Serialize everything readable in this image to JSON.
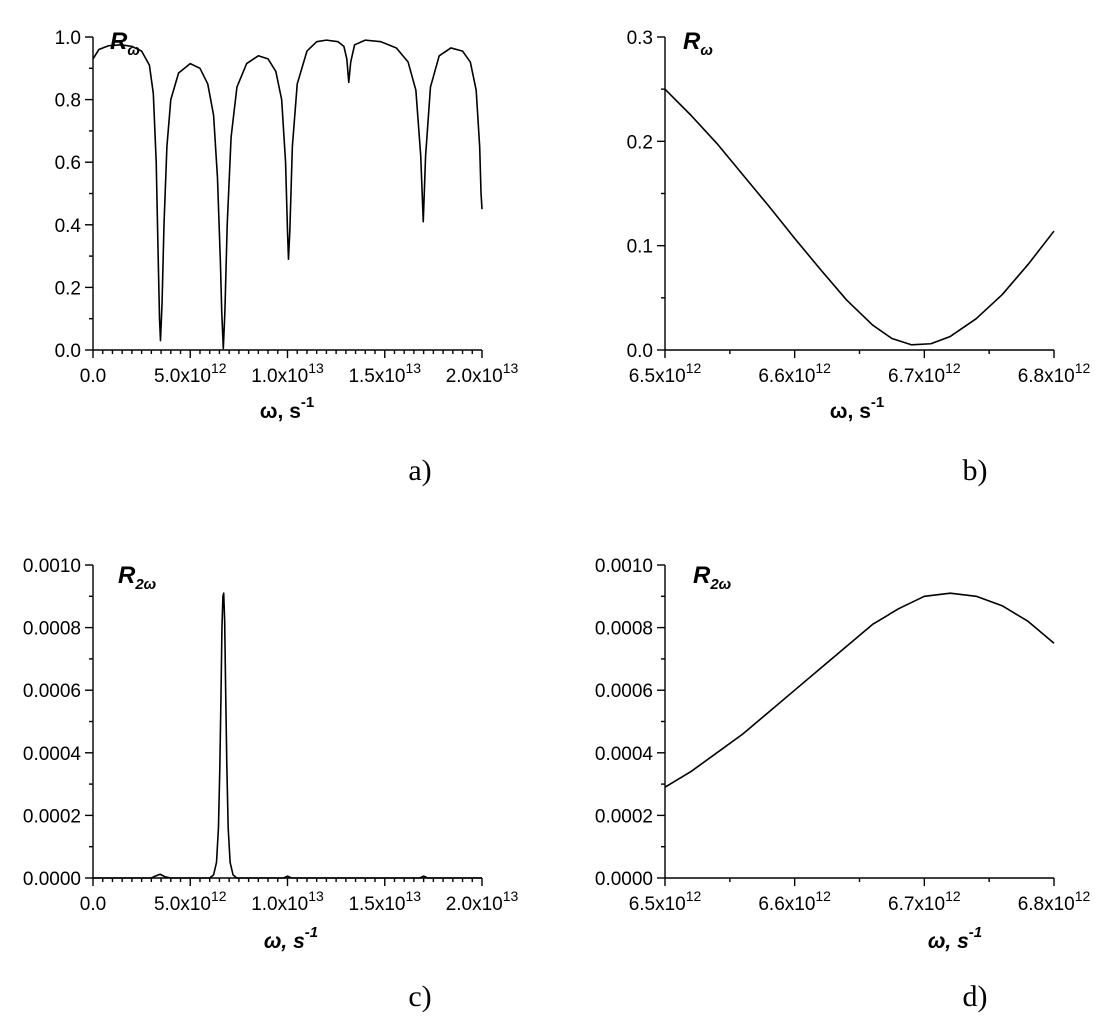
{
  "chart_data": [
    {
      "panel": "a)",
      "type": "line",
      "series_label": "R",
      "series_sub": "ω",
      "xlabel_main": "ω, s",
      "xlabel_sup": "-1",
      "xlim": [
        0,
        20000000000000.0
      ],
      "ylim": [
        0,
        1.0
      ],
      "xticks": [
        {
          "value": 0,
          "mant": "0.0",
          "exp": ""
        },
        {
          "value": 5000000000000.0,
          "mant": "5.0x10",
          "exp": "12"
        },
        {
          "value": 10000000000000.0,
          "mant": "1.0x10",
          "exp": "13"
        },
        {
          "value": 15000000000000.0,
          "mant": "1.5x10",
          "exp": "13"
        },
        {
          "value": 20000000000000.0,
          "mant": "2.0x10",
          "exp": "13"
        }
      ],
      "yticks": [
        {
          "value": 0.0,
          "label": "0.0"
        },
        {
          "value": 0.2,
          "label": "0.2"
        },
        {
          "value": 0.4,
          "label": "0.4"
        },
        {
          "value": 0.6,
          "label": "0.6"
        },
        {
          "value": 0.8,
          "label": "0.8"
        },
        {
          "value": 1.0,
          "label": "1.0"
        }
      ],
      "x_minor": 10,
      "y_minor": 2,
      "points": [
        [
          0,
          0.93
        ],
        [
          300000000000.0,
          0.96
        ],
        [
          800000000000.0,
          0.972
        ],
        [
          1400000000000.0,
          0.975
        ],
        [
          2000000000000.0,
          0.97
        ],
        [
          2500000000000.0,
          0.955
        ],
        [
          2900000000000.0,
          0.91
        ],
        [
          3100000000000.0,
          0.82
        ],
        [
          3250000000000.0,
          0.6
        ],
        [
          3350000000000.0,
          0.3
        ],
        [
          3420000000000.0,
          0.1
        ],
        [
          3470000000000.0,
          0.03
        ],
        [
          3550000000000.0,
          0.15
        ],
        [
          3650000000000.0,
          0.4
        ],
        [
          3800000000000.0,
          0.65
        ],
        [
          4000000000000.0,
          0.8
        ],
        [
          4400000000000.0,
          0.885
        ],
        [
          5000000000000.0,
          0.915
        ],
        [
          5500000000000.0,
          0.9
        ],
        [
          5900000000000.0,
          0.85
        ],
        [
          6200000000000.0,
          0.75
        ],
        [
          6400000000000.0,
          0.55
        ],
        [
          6550000000000.0,
          0.28
        ],
        [
          6620000000000.0,
          0.12
        ],
        [
          6700000000000.0,
          0.005
        ],
        [
          6780000000000.0,
          0.12
        ],
        [
          6900000000000.0,
          0.4
        ],
        [
          7100000000000.0,
          0.68
        ],
        [
          7400000000000.0,
          0.84
        ],
        [
          7900000000000.0,
          0.915
        ],
        [
          8500000000000.0,
          0.94
        ],
        [
          9000000000000.0,
          0.93
        ],
        [
          9400000000000.0,
          0.89
        ],
        [
          9700000000000.0,
          0.8
        ],
        [
          9900000000000.0,
          0.6
        ],
        [
          10000000000000.0,
          0.38
        ],
        [
          10050000000000.0,
          0.29
        ],
        [
          10120000000000.0,
          0.38
        ],
        [
          10250000000000.0,
          0.65
        ],
        [
          10500000000000.0,
          0.85
        ],
        [
          11000000000000.0,
          0.955
        ],
        [
          11500000000000.0,
          0.985
        ],
        [
          12000000000000.0,
          0.99
        ],
        [
          12600000000000.0,
          0.985
        ],
        [
          12900000000000.0,
          0.97
        ],
        [
          13050000000000.0,
          0.93
        ],
        [
          13150000000000.0,
          0.855
        ],
        [
          13250000000000.0,
          0.92
        ],
        [
          13450000000000.0,
          0.975
        ],
        [
          14000000000000.0,
          0.99
        ],
        [
          14800000000000.0,
          0.985
        ],
        [
          15600000000000.0,
          0.965
        ],
        [
          16200000000000.0,
          0.92
        ],
        [
          16600000000000.0,
          0.83
        ],
        [
          16850000000000.0,
          0.62
        ],
        [
          16980000000000.0,
          0.41
        ],
        [
          17100000000000.0,
          0.62
        ],
        [
          17350000000000.0,
          0.84
        ],
        [
          17800000000000.0,
          0.94
        ],
        [
          18400000000000.0,
          0.965
        ],
        [
          19000000000000.0,
          0.955
        ],
        [
          19400000000000.0,
          0.92
        ],
        [
          19700000000000.0,
          0.83
        ],
        [
          19880000000000.0,
          0.65
        ],
        [
          19950000000000.0,
          0.5
        ],
        [
          20000000000000.0,
          0.45
        ]
      ]
    },
    {
      "panel": "b)",
      "type": "line",
      "series_label": "R",
      "series_sub": "ω",
      "xlabel_main": "ω, s",
      "xlabel_sup": "-1",
      "xlim": [
        6500000000000.0,
        6800000000000.0
      ],
      "ylim": [
        0,
        0.3
      ],
      "xticks": [
        {
          "value": 6500000000000.0,
          "mant": "6.5x10",
          "exp": "12"
        },
        {
          "value": 6600000000000.0,
          "mant": "6.6x10",
          "exp": "12"
        },
        {
          "value": 6700000000000.0,
          "mant": "6.7x10",
          "exp": "12"
        },
        {
          "value": 6800000000000.0,
          "mant": "6.8x10",
          "exp": "12"
        }
      ],
      "yticks": [
        {
          "value": 0.0,
          "label": "0.0"
        },
        {
          "value": 0.1,
          "label": "0.1"
        },
        {
          "value": 0.2,
          "label": "0.2"
        },
        {
          "value": 0.3,
          "label": "0.3"
        }
      ],
      "x_minor": 2,
      "y_minor": 2,
      "points": [
        [
          6500000000000.0,
          0.25
        ],
        [
          6520000000000.0,
          0.225
        ],
        [
          6540000000000.0,
          0.198
        ],
        [
          6560000000000.0,
          0.168
        ],
        [
          6580000000000.0,
          0.138
        ],
        [
          6600000000000.0,
          0.107
        ],
        [
          6620000000000.0,
          0.077
        ],
        [
          6640000000000.0,
          0.048
        ],
        [
          6660000000000.0,
          0.024
        ],
        [
          6675000000000.0,
          0.011
        ],
        [
          6690000000000.0,
          0.005
        ],
        [
          6705000000000.0,
          0.006
        ],
        [
          6720000000000.0,
          0.013
        ],
        [
          6740000000000.0,
          0.03
        ],
        [
          6760000000000.0,
          0.053
        ],
        [
          6780000000000.0,
          0.082
        ],
        [
          6800000000000.0,
          0.114
        ]
      ]
    },
    {
      "panel": "c)",
      "type": "line",
      "series_label": "R",
      "series_sub": "2ω",
      "xlabel_main": "ω, s",
      "xlabel_sup": "-1",
      "xlim": [
        0,
        20000000000000.0
      ],
      "ylim": [
        0,
        0.001
      ],
      "xticks": [
        {
          "value": 0,
          "mant": "0.0",
          "exp": ""
        },
        {
          "value": 5000000000000.0,
          "mant": "5.0x10",
          "exp": "12"
        },
        {
          "value": 10000000000000.0,
          "mant": "1.0x10",
          "exp": "13"
        },
        {
          "value": 15000000000000.0,
          "mant": "1.5x10",
          "exp": "13"
        },
        {
          "value": 20000000000000.0,
          "mant": "2.0x10",
          "exp": "13"
        }
      ],
      "yticks": [
        {
          "value": 0.0,
          "label": "0.0000"
        },
        {
          "value": 0.0002,
          "label": "0.0002"
        },
        {
          "value": 0.0004,
          "label": "0.0004"
        },
        {
          "value": 0.0006,
          "label": "0.0006"
        },
        {
          "value": 0.0008,
          "label": "0.0008"
        },
        {
          "value": 0.001,
          "label": "0.0010"
        }
      ],
      "x_minor": 10,
      "y_minor": 2,
      "points": [
        [
          0,
          0
        ],
        [
          3000000000000.0,
          0
        ],
        [
          3200000000000.0,
          6e-06
        ],
        [
          3450000000000.0,
          1.2e-05
        ],
        [
          3700000000000.0,
          4e-06
        ],
        [
          4000000000000.0,
          0
        ],
        [
          6000000000000.0,
          0
        ],
        [
          6200000000000.0,
          1e-05
        ],
        [
          6350000000000.0,
          5e-05
        ],
        [
          6450000000000.0,
          0.00016
        ],
        [
          6520000000000.0,
          0.00035
        ],
        [
          6580000000000.0,
          0.00058
        ],
        [
          6630000000000.0,
          0.0008
        ],
        [
          6680000000000.0,
          0.0009
        ],
        [
          6720000000000.0,
          0.00091
        ],
        [
          6770000000000.0,
          0.00082
        ],
        [
          6820000000000.0,
          0.0006
        ],
        [
          6880000000000.0,
          0.00036
        ],
        [
          6950000000000.0,
          0.00016
        ],
        [
          7050000000000.0,
          5e-05
        ],
        [
          7200000000000.0,
          1e-05
        ],
        [
          7400000000000.0,
          0
        ],
        [
          9800000000000.0,
          0
        ],
        [
          10000000000000.0,
          6e-06
        ],
        [
          10200000000000.0,
          0
        ],
        [
          16800000000000.0,
          0
        ],
        [
          17000000000000.0,
          6e-06
        ],
        [
          17200000000000.0,
          0
        ],
        [
          20000000000000.0,
          0
        ]
      ]
    },
    {
      "panel": "d)",
      "type": "line",
      "series_label": "R",
      "series_sub": "2ω",
      "xlabel_main": "ω, s",
      "xlabel_sup": "-1",
      "xlim": [
        6500000000000.0,
        6800000000000.0
      ],
      "ylim": [
        0,
        0.001
      ],
      "xticks": [
        {
          "value": 6500000000000.0,
          "mant": "6.5x10",
          "exp": "12"
        },
        {
          "value": 6600000000000.0,
          "mant": "6.6x10",
          "exp": "12"
        },
        {
          "value": 6700000000000.0,
          "mant": "6.7x10",
          "exp": "12"
        },
        {
          "value": 6800000000000.0,
          "mant": "6.8x10",
          "exp": "12"
        }
      ],
      "yticks": [
        {
          "value": 0.0,
          "label": "0.0000"
        },
        {
          "value": 0.0002,
          "label": "0.0002"
        },
        {
          "value": 0.0004,
          "label": "0.0004"
        },
        {
          "value": 0.0006,
          "label": "0.0006"
        },
        {
          "value": 0.0008,
          "label": "0.0008"
        },
        {
          "value": 0.001,
          "label": "0.0010"
        }
      ],
      "x_minor": 2,
      "y_minor": 2,
      "points": [
        [
          6500000000000.0,
          0.00029
        ],
        [
          6520000000000.0,
          0.00034
        ],
        [
          6540000000000.0,
          0.0004
        ],
        [
          6560000000000.0,
          0.00046
        ],
        [
          6580000000000.0,
          0.00053
        ],
        [
          6600000000000.0,
          0.0006
        ],
        [
          6620000000000.0,
          0.00067
        ],
        [
          6640000000000.0,
          0.00074
        ],
        [
          6660000000000.0,
          0.00081
        ],
        [
          6680000000000.0,
          0.00086
        ],
        [
          6700000000000.0,
          0.0009
        ],
        [
          6720000000000.0,
          0.00091
        ],
        [
          6740000000000.0,
          0.0009
        ],
        [
          6760000000000.0,
          0.00087
        ],
        [
          6780000000000.0,
          0.00082
        ],
        [
          6800000000000.0,
          0.00075
        ]
      ]
    }
  ]
}
